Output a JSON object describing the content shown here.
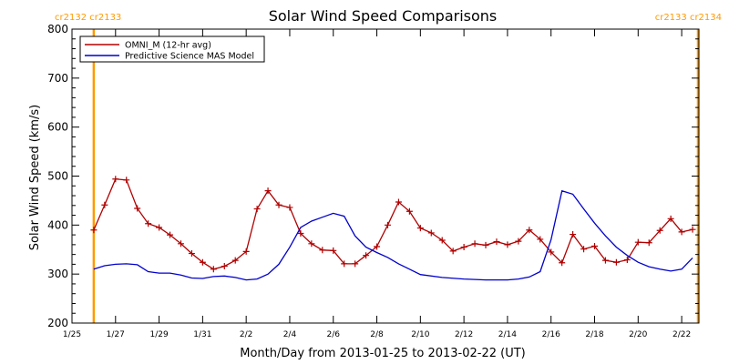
{
  "chart_data": {
    "type": "line",
    "title": "Solar Wind Speed Comparisons",
    "xlabel": "Month/Day from 2013-01-25 to 2013-02-22 (UT)",
    "ylabel": "Solar Wind Speed (km/s)",
    "xlim": [
      "2013-01-25",
      "2013-02-22T19:00"
    ],
    "ylim": [
      200,
      800
    ],
    "y_ticks": [
      200,
      300,
      400,
      500,
      600,
      700,
      800
    ],
    "x_ticks": [
      {
        "date": "2013-01-25",
        "label": "1/25"
      },
      {
        "date": "2013-01-27",
        "label": "1/27"
      },
      {
        "date": "2013-01-29",
        "label": "1/29"
      },
      {
        "date": "2013-01-31",
        "label": "1/31"
      },
      {
        "date": "2013-02-02",
        "label": "2/2"
      },
      {
        "date": "2013-02-04",
        "label": "2/4"
      },
      {
        "date": "2013-02-06",
        "label": "2/6"
      },
      {
        "date": "2013-02-08",
        "label": "2/8"
      },
      {
        "date": "2013-02-10",
        "label": "2/10"
      },
      {
        "date": "2013-02-12",
        "label": "2/12"
      },
      {
        "date": "2013-02-14",
        "label": "2/14"
      },
      {
        "date": "2013-02-16",
        "label": "2/16"
      },
      {
        "date": "2013-02-18",
        "label": "2/18"
      },
      {
        "date": "2013-02-20",
        "label": "2/20"
      },
      {
        "date": "2013-02-22",
        "label": "2/22"
      }
    ],
    "legend_position": "top-left",
    "carrington_markers": [
      {
        "date": "2013-01-26",
        "label": "cr2132 cr2133",
        "color": "#ff9900"
      },
      {
        "date": "2013-02-22T18:00",
        "label": "cr2133 cr2134",
        "color": "#ff9900"
      }
    ],
    "series": [
      {
        "name": "OMNI_M (12-hr avg)",
        "color": "#b00000",
        "marker": "plus",
        "x": [
          "2013-01-26T00:00",
          "2013-01-26T12:00",
          "2013-01-27T00:00",
          "2013-01-27T12:00",
          "2013-01-28T00:00",
          "2013-01-28T12:00",
          "2013-01-29T00:00",
          "2013-01-29T12:00",
          "2013-01-30T00:00",
          "2013-01-30T12:00",
          "2013-01-31T00:00",
          "2013-01-31T12:00",
          "2013-02-01T00:00",
          "2013-02-01T12:00",
          "2013-02-02T00:00",
          "2013-02-02T12:00",
          "2013-02-03T00:00",
          "2013-02-03T12:00",
          "2013-02-04T00:00",
          "2013-02-04T12:00",
          "2013-02-05T00:00",
          "2013-02-05T12:00",
          "2013-02-06T00:00",
          "2013-02-06T12:00",
          "2013-02-07T00:00",
          "2013-02-07T12:00",
          "2013-02-08T00:00",
          "2013-02-08T12:00",
          "2013-02-09T00:00",
          "2013-02-09T12:00",
          "2013-02-10T00:00",
          "2013-02-10T12:00",
          "2013-02-11T00:00",
          "2013-02-11T12:00",
          "2013-02-12T00:00",
          "2013-02-12T12:00",
          "2013-02-13T00:00",
          "2013-02-13T12:00",
          "2013-02-14T00:00",
          "2013-02-14T12:00",
          "2013-02-15T00:00",
          "2013-02-15T12:00",
          "2013-02-16T00:00",
          "2013-02-16T12:00",
          "2013-02-17T00:00",
          "2013-02-17T12:00",
          "2013-02-18T00:00",
          "2013-02-18T12:00",
          "2013-02-19T00:00",
          "2013-02-19T12:00",
          "2013-02-20T00:00",
          "2013-02-20T12:00",
          "2013-02-21T00:00",
          "2013-02-21T12:00",
          "2013-02-22T00:00",
          "2013-02-22T12:00"
        ],
        "values": [
          390,
          441,
          494,
          492,
          434,
          403,
          395,
          380,
          362,
          342,
          324,
          310,
          316,
          328,
          346,
          433,
          470,
          441,
          436,
          383,
          362,
          349,
          348,
          321,
          321,
          338,
          356,
          400,
          447,
          428,
          394,
          384,
          369,
          347,
          355,
          362,
          359,
          366,
          360,
          367,
          390,
          371,
          345,
          323,
          381,
          351,
          357,
          328,
          324,
          329,
          365,
          364,
          389,
          413,
          386,
          391
        ]
      },
      {
        "name": "Predictive Science MAS Model",
        "color": "#0000cc",
        "marker": "none",
        "x": [
          "2013-01-26T00:00",
          "2013-01-26T12:00",
          "2013-01-27T00:00",
          "2013-01-27T12:00",
          "2013-01-28T00:00",
          "2013-01-28T12:00",
          "2013-01-29T00:00",
          "2013-01-29T12:00",
          "2013-01-30T00:00",
          "2013-01-30T12:00",
          "2013-01-31T00:00",
          "2013-01-31T12:00",
          "2013-02-01T00:00",
          "2013-02-01T12:00",
          "2013-02-02T00:00",
          "2013-02-02T12:00",
          "2013-02-03T00:00",
          "2013-02-03T12:00",
          "2013-02-04T00:00",
          "2013-02-04T12:00",
          "2013-02-05T00:00",
          "2013-02-05T12:00",
          "2013-02-06T00:00",
          "2013-02-06T12:00",
          "2013-02-07T00:00",
          "2013-02-07T12:00",
          "2013-02-08T00:00",
          "2013-02-08T12:00",
          "2013-02-09T00:00",
          "2013-02-09T12:00",
          "2013-02-10T00:00",
          "2013-02-11T00:00",
          "2013-02-12T00:00",
          "2013-02-13T00:00",
          "2013-02-14T00:00",
          "2013-02-14T12:00",
          "2013-02-15T00:00",
          "2013-02-15T12:00",
          "2013-02-16T00:00",
          "2013-02-16T12:00",
          "2013-02-17T00:00",
          "2013-02-17T12:00",
          "2013-02-18T00:00",
          "2013-02-18T12:00",
          "2013-02-19T00:00",
          "2013-02-19T12:00",
          "2013-02-20T00:00",
          "2013-02-20T12:00",
          "2013-02-21T00:00",
          "2013-02-21T12:00",
          "2013-02-22T00:00",
          "2013-02-22T12:00"
        ],
        "values": [
          310,
          317,
          320,
          321,
          319,
          305,
          302,
          302,
          298,
          292,
          291,
          295,
          296,
          293,
          288,
          290,
          300,
          320,
          355,
          395,
          408,
          416,
          424,
          418,
          378,
          355,
          344,
          334,
          321,
          310,
          299,
          293,
          290,
          288,
          288,
          290,
          294,
          305,
          370,
          470,
          463,
          433,
          404,
          378,
          355,
          338,
          324,
          315,
          310,
          306,
          310,
          333
        ]
      }
    ]
  }
}
